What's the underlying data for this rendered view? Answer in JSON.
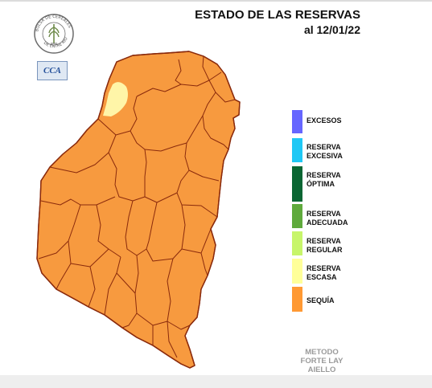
{
  "header": {
    "title": "ESTADO DE LAS RESERVAS",
    "date_label": "al 12/01/22"
  },
  "logos": {
    "seal_text": "BOLSA DE CEREALES DE ENTRE RIOS",
    "cca_text": "CCA"
  },
  "map": {
    "region": "Entre Ríos",
    "status_by_color": {
      "dominant": "SEQUÍA",
      "northwest_patch": "RESERVA ESCASA"
    }
  },
  "legend": {
    "items": [
      {
        "lines": [
          "EXCESOS"
        ],
        "color": "#6666ff"
      },
      {
        "lines": [
          "RESERVA",
          "EXCESIVA"
        ],
        "color": "#1fc8f5"
      },
      {
        "lines": [
          "RESERVA",
          "ÓPTIMA"
        ],
        "color": "#0a6633"
      },
      {
        "lines": [
          "RESERVA",
          "ADECUADA"
        ],
        "color": "#5faa3c"
      },
      {
        "lines": [
          "RESERVA",
          "REGULAR"
        ],
        "color": "#c7f56a"
      },
      {
        "lines": [
          "RESERVA",
          "ESCASA"
        ],
        "color": "#ffff99"
      },
      {
        "lines": [
          "SEQUÍA"
        ],
        "color": "#ff9933"
      }
    ]
  },
  "method": {
    "lines": [
      "METODO",
      "FORTE LAY",
      "AIELLO"
    ]
  },
  "colors": {
    "drought": "#f79a3f",
    "scarce": "#fff5a8",
    "department_border": "#8a2a0c"
  }
}
